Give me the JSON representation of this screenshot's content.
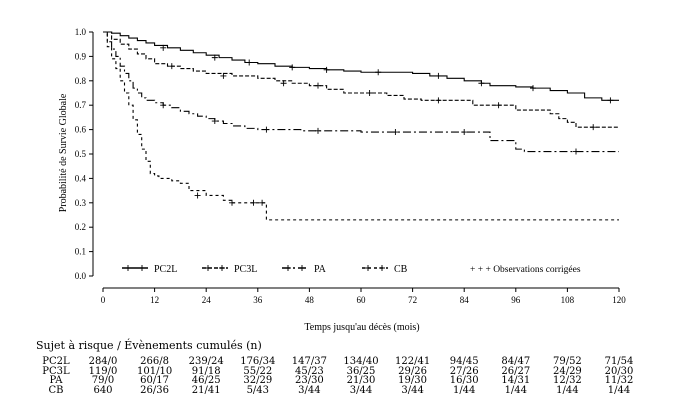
{
  "chart_data": {
    "type": "line",
    "step": true,
    "ylabel": "Probabilité de Survie Globale",
    "xlabel": "Temps jusqu'au décès (mois)",
    "xlim": [
      0,
      120
    ],
    "ylim": [
      0.0,
      1.0
    ],
    "x_ticks": [
      "0",
      "12",
      "24",
      "36",
      "48",
      "60",
      "72",
      "84",
      "96",
      "108",
      "120"
    ],
    "y_ticks": [
      "0.0",
      "0.1",
      "0.2",
      "0.3",
      "0.4",
      "0.5",
      "0.6",
      "0.7",
      "0.8",
      "0.9",
      "1.0"
    ],
    "legend_position": "bottom",
    "censor_legend_label": "+ + + Observations corrigées",
    "series": [
      {
        "name": "PC2L",
        "dash": "solid",
        "points": [
          [
            0,
            1.0
          ],
          [
            2,
            0.995
          ],
          [
            4,
            0.985
          ],
          [
            6,
            0.975
          ],
          [
            8,
            0.965
          ],
          [
            10,
            0.955
          ],
          [
            12,
            0.945
          ],
          [
            15,
            0.935
          ],
          [
            18,
            0.925
          ],
          [
            21,
            0.915
          ],
          [
            24,
            0.905
          ],
          [
            27,
            0.895
          ],
          [
            30,
            0.885
          ],
          [
            33,
            0.875
          ],
          [
            36,
            0.87
          ],
          [
            40,
            0.86
          ],
          [
            44,
            0.855
          ],
          [
            48,
            0.85
          ],
          [
            52,
            0.845
          ],
          [
            56,
            0.84
          ],
          [
            60,
            0.835
          ],
          [
            66,
            0.835
          ],
          [
            72,
            0.83
          ],
          [
            76,
            0.82
          ],
          [
            80,
            0.81
          ],
          [
            84,
            0.8
          ],
          [
            88,
            0.79
          ],
          [
            90,
            0.78
          ],
          [
            96,
            0.775
          ],
          [
            100,
            0.77
          ],
          [
            104,
            0.76
          ],
          [
            108,
            0.75
          ],
          [
            112,
            0.73
          ],
          [
            116,
            0.72
          ],
          [
            120,
            0.72
          ]
        ],
        "censored": [
          [
            14,
            0.935
          ],
          [
            26,
            0.895
          ],
          [
            34,
            0.875
          ],
          [
            44,
            0.855
          ],
          [
            52,
            0.845
          ],
          [
            64,
            0.835
          ],
          [
            78,
            0.82
          ],
          [
            88,
            0.79
          ],
          [
            100,
            0.77
          ],
          [
            118,
            0.72
          ]
        ]
      },
      {
        "name": "PC3L",
        "dash": "4,2",
        "points": [
          [
            0,
            1.0
          ],
          [
            2,
            0.97
          ],
          [
            4,
            0.95
          ],
          [
            6,
            0.93
          ],
          [
            8,
            0.91
          ],
          [
            10,
            0.89
          ],
          [
            12,
            0.87
          ],
          [
            15,
            0.86
          ],
          [
            18,
            0.85
          ],
          [
            21,
            0.84
          ],
          [
            24,
            0.83
          ],
          [
            30,
            0.82
          ],
          [
            36,
            0.81
          ],
          [
            40,
            0.8
          ],
          [
            44,
            0.79
          ],
          [
            48,
            0.78
          ],
          [
            52,
            0.765
          ],
          [
            56,
            0.75
          ],
          [
            66,
            0.74
          ],
          [
            70,
            0.725
          ],
          [
            74,
            0.72
          ],
          [
            84,
            0.72
          ],
          [
            86,
            0.7
          ],
          [
            96,
            0.68
          ],
          [
            104,
            0.665
          ],
          [
            106,
            0.645
          ],
          [
            108,
            0.63
          ],
          [
            110,
            0.61
          ],
          [
            120,
            0.61
          ]
        ],
        "censored": [
          [
            16,
            0.86
          ],
          [
            28,
            0.82
          ],
          [
            42,
            0.79
          ],
          [
            50,
            0.78
          ],
          [
            62,
            0.75
          ],
          [
            78,
            0.72
          ],
          [
            92,
            0.7
          ],
          [
            114,
            0.61
          ]
        ]
      },
      {
        "name": "PA",
        "dash": "8,3,2,3",
        "points": [
          [
            0,
            1.0
          ],
          [
            1,
            0.96
          ],
          [
            2,
            0.93
          ],
          [
            3,
            0.9
          ],
          [
            4,
            0.86
          ],
          [
            5,
            0.83
          ],
          [
            6,
            0.8
          ],
          [
            7,
            0.77
          ],
          [
            8,
            0.75
          ],
          [
            9,
            0.73
          ],
          [
            10,
            0.72
          ],
          [
            12,
            0.71
          ],
          [
            14,
            0.7
          ],
          [
            16,
            0.69
          ],
          [
            18,
            0.675
          ],
          [
            20,
            0.665
          ],
          [
            22,
            0.655
          ],
          [
            24,
            0.645
          ],
          [
            26,
            0.635
          ],
          [
            28,
            0.625
          ],
          [
            30,
            0.615
          ],
          [
            33,
            0.605
          ],
          [
            36,
            0.6
          ],
          [
            46,
            0.595
          ],
          [
            60,
            0.59
          ],
          [
            84,
            0.59
          ],
          [
            90,
            0.555
          ],
          [
            96,
            0.52
          ],
          [
            98,
            0.51
          ],
          [
            120,
            0.51
          ]
        ],
        "censored": [
          [
            14,
            0.7
          ],
          [
            26,
            0.635
          ],
          [
            38,
            0.6
          ],
          [
            50,
            0.595
          ],
          [
            68,
            0.59
          ],
          [
            84,
            0.59
          ],
          [
            110,
            0.51
          ]
        ]
      },
      {
        "name": "CB",
        "dash": "3,3",
        "points": [
          [
            0,
            1.0
          ],
          [
            1,
            0.94
          ],
          [
            2,
            0.89
          ],
          [
            3,
            0.85
          ],
          [
            4,
            0.8
          ],
          [
            5,
            0.75
          ],
          [
            6,
            0.7
          ],
          [
            7,
            0.64
          ],
          [
            8,
            0.58
          ],
          [
            9,
            0.52
          ],
          [
            10,
            0.47
          ],
          [
            11,
            0.42
          ],
          [
            12,
            0.41
          ],
          [
            13,
            0.4
          ],
          [
            16,
            0.39
          ],
          [
            18,
            0.38
          ],
          [
            20,
            0.35
          ],
          [
            24,
            0.33
          ],
          [
            28,
            0.31
          ],
          [
            30,
            0.3
          ],
          [
            38,
            0.3
          ],
          [
            38,
            0.23
          ],
          [
            120,
            0.23
          ]
        ],
        "censored": [
          [
            22,
            0.33
          ],
          [
            30,
            0.3
          ],
          [
            35,
            0.3
          ],
          [
            37,
            0.3
          ]
        ]
      }
    ]
  },
  "risk_table": {
    "title": "Sujet à risque / Évènements cumulés (n)",
    "rows": [
      {
        "label": "PC2L",
        "values": [
          "284/0",
          "266/8",
          "239/24",
          "176/34",
          "147/37",
          "134/40",
          "122/41",
          "94/45",
          "84/47",
          "79/52",
          "71/54"
        ]
      },
      {
        "label": "PC3L",
        "values": [
          "119/0",
          "101/10",
          "91/18",
          "55/22",
          "45/23",
          "36/25",
          "29/26",
          "27/26",
          "26/27",
          "24/29",
          "20/30"
        ]
      },
      {
        "label": "PA",
        "values": [
          "79/0",
          "60/17",
          "46/25",
          "32/29",
          "23/30",
          "21/30",
          "19/30",
          "16/30",
          "14/31",
          "12/32",
          "11/32"
        ]
      },
      {
        "label": "CB",
        "values": [
          "640",
          "26/36",
          "21/41",
          "5/43",
          "3/44",
          "3/44",
          "3/44",
          "1/44",
          "1/44",
          "1/44",
          "1/44"
        ]
      }
    ]
  }
}
